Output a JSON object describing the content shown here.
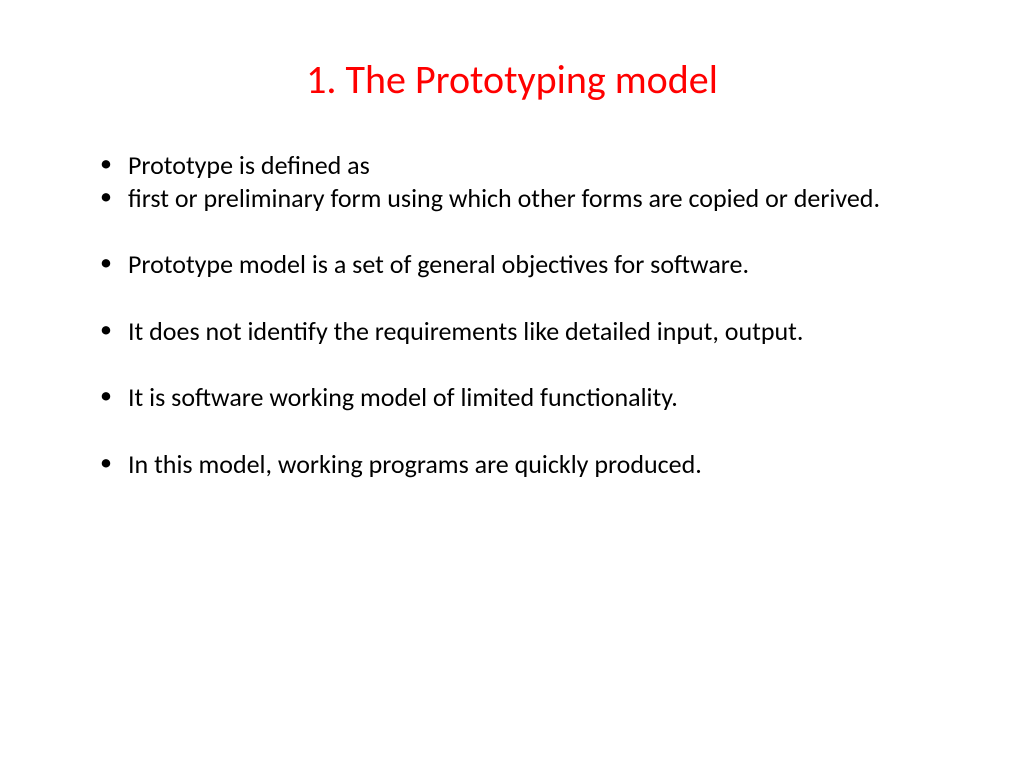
{
  "slide": {
    "title": "1. The Prototyping model",
    "title_color": "#ff0000",
    "title_fontsize": 40,
    "body_fontsize": 26,
    "body_color": "#000000",
    "background_color": "#ffffff",
    "bullets": [
      "Prototype is defined as",
      "first or preliminary form using which other forms are copied or derived.",
      "Prototype model is a set of general objectives for software.",
      "It does not identify the requirements like detailed input, output.",
      "It is software working model of limited functionality.",
      "In this model, working programs are quickly produced."
    ]
  }
}
